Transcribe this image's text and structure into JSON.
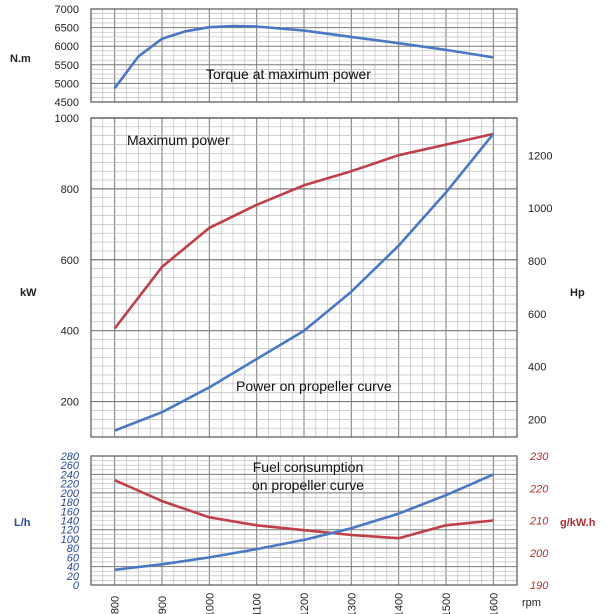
{
  "colors": {
    "blue": "#4a78c4",
    "red": "#c0404a",
    "grid": "#b5b5b5",
    "gridMajor": "#7a7a7a"
  },
  "chart_data": [
    {
      "type": "line",
      "title": "Torque at maximum power",
      "ylabel": "N.m",
      "ylim": [
        4500,
        7000
      ],
      "yticks": [
        "7000",
        "6500",
        "6000",
        "5500",
        "5000",
        "4500"
      ],
      "xlim": [
        750,
        1650
      ],
      "series": [
        {
          "color": "blue",
          "x": [
            800,
            850,
            900,
            950,
            1000,
            1050,
            1100,
            1200,
            1300,
            1400,
            1500,
            1600
          ],
          "y": [
            4870,
            5720,
            6200,
            6400,
            6510,
            6540,
            6530,
            6420,
            6250,
            6080,
            5900,
            5700
          ]
        }
      ]
    },
    {
      "type": "line",
      "title": "Maximum power",
      "annotation": "Power on propeller curve",
      "ylabel_left": "kW",
      "ylabel_right": "Hp",
      "ylim_left": [
        100,
        1000
      ],
      "ylim_right": [
        134,
        1341
      ],
      "yticks_left": [
        "1000",
        "800",
        "600",
        "400",
        "200"
      ],
      "yticks_right": [
        "1200",
        "1000",
        "800",
        "600",
        "400",
        "200"
      ],
      "xlim": [
        750,
        1650
      ],
      "series": [
        {
          "color": "red",
          "x": [
            800,
            900,
            1000,
            1100,
            1200,
            1300,
            1400,
            1500,
            1600
          ],
          "y": [
            406,
            580,
            690,
            755,
            810,
            850,
            895,
            925,
            955
          ]
        },
        {
          "color": "blue",
          "x": [
            800,
            900,
            1000,
            1100,
            1200,
            1300,
            1400,
            1500,
            1600
          ],
          "y": [
            118,
            170,
            240,
            320,
            400,
            510,
            640,
            790,
            955
          ]
        }
      ]
    },
    {
      "type": "line",
      "title_lines": [
        "Fuel consumption",
        "on propeller curve"
      ],
      "ylabel_left": "L/h",
      "ylabel_right": "g/kW.h",
      "ylim_left": [
        0,
        280
      ],
      "ylim_right": [
        190,
        230
      ],
      "yticks_left": [
        "280",
        "260",
        "240",
        "220",
        "200",
        "180",
        "160",
        "140",
        "120",
        "100",
        "80",
        "60",
        "40",
        "20",
        "0"
      ],
      "yticks_right": [
        "230",
        "220",
        "210",
        "200",
        "190"
      ],
      "xlabel": "rpm",
      "xticks": [
        "800",
        "900",
        "1000",
        "1100",
        "1200",
        "1300",
        "1400",
        "1500",
        "1600"
      ],
      "xlim": [
        750,
        1650
      ],
      "series": [
        {
          "color": "red",
          "axis": "right",
          "x": [
            800,
            900,
            1000,
            1100,
            1200,
            1300,
            1400,
            1450,
            1500,
            1600
          ],
          "y": [
            222.5,
            216,
            211,
            208.5,
            207,
            205.5,
            204.5,
            206.5,
            208.5,
            210
          ]
        },
        {
          "color": "blue",
          "axis": "left",
          "x": [
            800,
            900,
            1000,
            1100,
            1200,
            1300,
            1400,
            1500,
            1600
          ],
          "y": [
            33,
            45,
            60,
            78,
            98,
            123,
            155,
            195,
            240
          ]
        }
      ]
    }
  ]
}
